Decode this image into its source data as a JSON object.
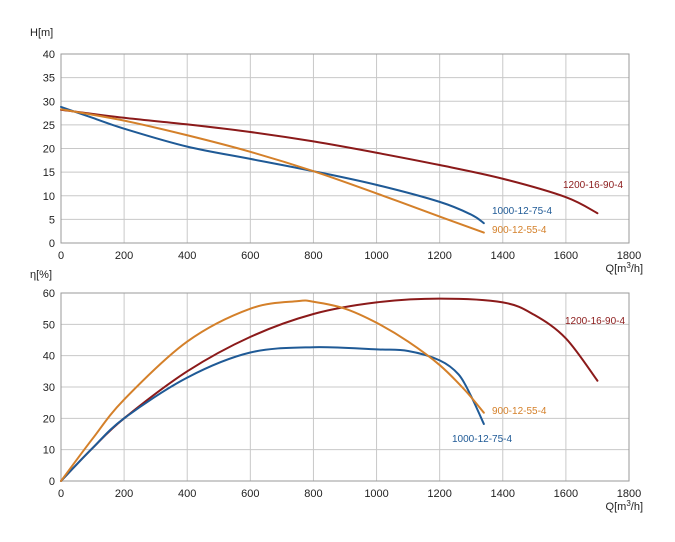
{
  "chart_data": [
    {
      "type": "line",
      "ylabel": "H[m]",
      "xlabel": "Q[m³/h]",
      "xlim": [
        0,
        1800
      ],
      "ylim": [
        0,
        40
      ],
      "xticks": [
        0,
        200,
        400,
        600,
        800,
        1000,
        1200,
        1400,
        1600,
        1800
      ],
      "yticks": [
        0,
        5,
        10,
        15,
        20,
        25,
        30,
        35,
        40
      ],
      "grid": true,
      "series": [
        {
          "name": "1200-16-90-4",
          "color": "#8b1a1a",
          "points": [
            [
              0,
              28.2
            ],
            [
              200,
              26.5
            ],
            [
              400,
              25.1
            ],
            [
              600,
              23.5
            ],
            [
              800,
              21.5
            ],
            [
              1000,
              19.1
            ],
            [
              1200,
              16.5
            ],
            [
              1400,
              13.6
            ],
            [
              1600,
              9.7
            ],
            [
              1700,
              6.3
            ]
          ]
        },
        {
          "name": "1000-12-75-4",
          "color": "#1f5a96",
          "points": [
            [
              0,
              28.8
            ],
            [
              100,
              26.5
            ],
            [
              200,
              24.2
            ],
            [
              400,
              20.4
            ],
            [
              600,
              17.8
            ],
            [
              800,
              15.2
            ],
            [
              1000,
              12.3
            ],
            [
              1200,
              8.7
            ],
            [
              1300,
              6.0
            ],
            [
              1340,
              4.2
            ]
          ]
        },
        {
          "name": "900-12-55-4",
          "color": "#d4802a",
          "points": [
            [
              0,
              28.3
            ],
            [
              200,
              25.9
            ],
            [
              400,
              22.8
            ],
            [
              600,
              19.3
            ],
            [
              800,
              15.2
            ],
            [
              1000,
              10.5
            ],
            [
              1200,
              5.6
            ],
            [
              1340,
              2.2
            ]
          ]
        }
      ]
    },
    {
      "type": "line",
      "ylabel": "η[%]",
      "xlabel": "Q[m³/h]",
      "xlim": [
        0,
        1800
      ],
      "ylim": [
        0,
        60
      ],
      "xticks": [
        0,
        200,
        400,
        600,
        800,
        1000,
        1200,
        1400,
        1600,
        1800
      ],
      "yticks": [
        0,
        10,
        20,
        30,
        40,
        50,
        60
      ],
      "grid": true,
      "series": [
        {
          "name": "1200-16-90-4",
          "color": "#8b1a1a",
          "points": [
            [
              0,
              0
            ],
            [
              100,
              10.5
            ],
            [
              200,
              20
            ],
            [
              400,
              35
            ],
            [
              600,
              46
            ],
            [
              800,
              53.3
            ],
            [
              1000,
              57
            ],
            [
              1200,
              58.2
            ],
            [
              1400,
              57
            ],
            [
              1500,
              53
            ],
            [
              1600,
              45.5
            ],
            [
              1700,
              32
            ]
          ]
        },
        {
          "name": "1000-12-75-4",
          "color": "#1f5a96",
          "points": [
            [
              0,
              0
            ],
            [
              100,
              10.5
            ],
            [
              200,
              20
            ],
            [
              400,
              33
            ],
            [
              600,
              41
            ],
            [
              800,
              42.7
            ],
            [
              1000,
              42
            ],
            [
              1100,
              41.5
            ],
            [
              1200,
              38.5
            ],
            [
              1260,
              34
            ],
            [
              1300,
              27
            ],
            [
              1340,
              18.2
            ]
          ]
        },
        {
          "name": "900-12-55-4",
          "color": "#d4802a",
          "points": [
            [
              0,
              0
            ],
            [
              100,
              13.5
            ],
            [
              200,
              26
            ],
            [
              400,
              44.5
            ],
            [
              600,
              55
            ],
            [
              750,
              57.4
            ],
            [
              800,
              57.2
            ],
            [
              900,
              55
            ],
            [
              1000,
              50.5
            ],
            [
              1100,
              44.5
            ],
            [
              1200,
              37
            ],
            [
              1280,
              29
            ],
            [
              1340,
              21.8
            ]
          ]
        }
      ]
    }
  ]
}
